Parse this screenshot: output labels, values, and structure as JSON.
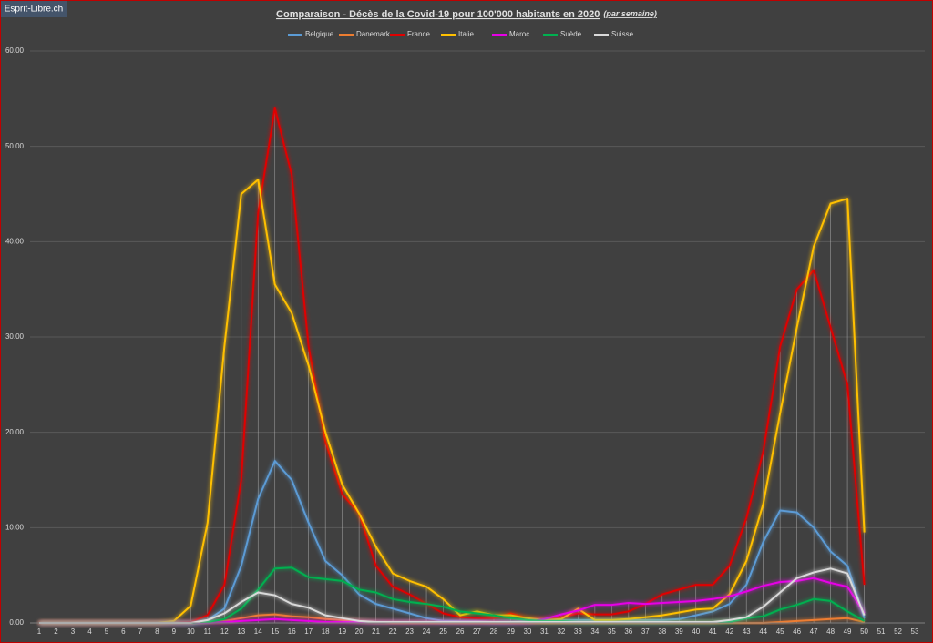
{
  "badge": "Esprit-Libre.ch",
  "chart_data": {
    "type": "line",
    "title": "Comparaison - Décès de la Covid-19 pour 100'000  habitants en 2020",
    "title_note": "(par semaine)",
    "categories": [
      1,
      2,
      3,
      4,
      5,
      6,
      7,
      8,
      9,
      10,
      11,
      12,
      13,
      14,
      15,
      16,
      17,
      18,
      19,
      20,
      21,
      22,
      23,
      24,
      25,
      26,
      27,
      28,
      29,
      30,
      31,
      32,
      33,
      34,
      35,
      36,
      37,
      38,
      39,
      40,
      41,
      42,
      43,
      44,
      45,
      46,
      47,
      48,
      49,
      50,
      51,
      52,
      53
    ],
    "ylim": [
      0,
      60
    ],
    "yticks": [
      {
        "value": 0,
        "label": "0.00"
      },
      {
        "value": 10,
        "label": "10.00"
      },
      {
        "value": 20,
        "label": "20.00"
      },
      {
        "value": 30,
        "label": "30.00"
      },
      {
        "value": 40,
        "label": "40.00"
      },
      {
        "value": 50,
        "label": "50.00"
      },
      {
        "value": 60,
        "label": "60.00"
      }
    ],
    "grid": true,
    "legend": "top",
    "series": [
      {
        "name": "Belgique",
        "color": "#5b9bd5",
        "values": [
          0,
          0,
          0,
          0,
          0,
          0,
          0,
          0,
          0,
          0,
          0.3,
          1.5,
          6,
          13,
          17,
          15,
          10.5,
          6.5,
          5,
          3,
          2,
          1.5,
          1,
          0.5,
          0.2,
          0.2,
          0.2,
          0.1,
          0.1,
          0.2,
          0.3,
          0.3,
          0.3,
          0.3,
          0.3,
          0.3,
          0.3,
          0.3,
          0.4,
          0.8,
          1.2,
          2,
          4,
          8.5,
          11.8,
          11.6,
          10,
          7.5,
          6,
          0.5,
          null,
          null,
          null
        ]
      },
      {
        "name": "Danemark",
        "color": "#ed7d31",
        "values": [
          0,
          0,
          0,
          0,
          0,
          0,
          0,
          0,
          0,
          0,
          0,
          0.2,
          0.5,
          0.8,
          0.9,
          0.7,
          0.6,
          0.4,
          0.3,
          0.2,
          0.1,
          0,
          0,
          0,
          0,
          0,
          0,
          0,
          0,
          0,
          0,
          0,
          0,
          0,
          0,
          0,
          0,
          0,
          0,
          0,
          0,
          0,
          0,
          0,
          0.1,
          0.2,
          0.3,
          0.4,
          0.5,
          0.1,
          null,
          null,
          null
        ]
      },
      {
        "name": "France",
        "color": "#e00000",
        "values": [
          0,
          0,
          0,
          0,
          0,
          0,
          0,
          0,
          0,
          0.1,
          0.8,
          4,
          15,
          43,
          54,
          47,
          29,
          19,
          13.5,
          11.5,
          6,
          3.8,
          3,
          2,
          1,
          0.6,
          0.5,
          0.5,
          1,
          0.5,
          0.4,
          0.6,
          1,
          0.9,
          0.9,
          1.2,
          2,
          3,
          3.5,
          4,
          4,
          6,
          11,
          18,
          29,
          35,
          37,
          31,
          25,
          4,
          null,
          null,
          null
        ]
      },
      {
        "name": "Italie",
        "color": "#ffc000",
        "values": [
          0,
          0,
          0,
          0,
          0,
          0,
          0,
          0,
          0.2,
          1.8,
          10.5,
          29,
          45,
          46.5,
          35.5,
          32.5,
          27,
          20,
          14.5,
          11.5,
          8,
          5.2,
          4.4,
          3.8,
          2.5,
          0.8,
          1.2,
          0.8,
          0.8,
          0.5,
          0.3,
          0.4,
          1.5,
          0.3,
          0.3,
          0.4,
          0.6,
          0.8,
          1.1,
          1.4,
          1.5,
          3,
          6.5,
          12.5,
          22,
          31,
          39.5,
          44,
          44.5,
          9.5,
          null,
          null,
          null
        ]
      },
      {
        "name": "Maroc",
        "color": "#e600e6",
        "values": [
          0,
          0,
          0,
          0,
          0,
          0,
          0,
          0,
          0,
          0,
          0,
          0.1,
          0.2,
          0.3,
          0.4,
          0.3,
          0.2,
          0.1,
          0.1,
          0.1,
          0.1,
          0.1,
          0.1,
          0.1,
          0.1,
          0.1,
          0.1,
          0.1,
          0.1,
          0.1,
          0.4,
          0.9,
          1.3,
          1.9,
          1.9,
          2.1,
          2,
          2.1,
          2.2,
          2.3,
          2.5,
          2.8,
          3.3,
          3.9,
          4.3,
          4.4,
          4.7,
          4.2,
          3.8,
          1,
          null,
          null,
          null
        ]
      },
      {
        "name": "Suède",
        "color": "#00b050",
        "values": [
          0,
          0,
          0,
          0,
          0,
          0,
          0,
          0,
          0,
          0,
          0.1,
          0.4,
          1.5,
          3.5,
          5.7,
          5.8,
          4.8,
          4.6,
          4.4,
          3.5,
          3.2,
          2.5,
          2.2,
          2,
          1.7,
          1.2,
          1,
          0.8,
          0.5,
          0.3,
          0.2,
          0.2,
          0.1,
          0.1,
          0.1,
          0.1,
          0.1,
          0.1,
          0.1,
          0.1,
          0.1,
          0.1,
          0.5,
          0.7,
          1.4,
          1.9,
          2.5,
          2.3,
          1.2,
          0.2,
          null,
          null,
          null
        ]
      },
      {
        "name": "Suisse",
        "color": "#d9d9d9",
        "values": [
          0,
          0,
          0,
          0,
          0,
          0,
          0,
          0,
          0,
          0,
          0.3,
          1,
          2.2,
          3.2,
          2.9,
          2,
          1.6,
          0.8,
          0.5,
          0.2,
          0.1,
          0.1,
          0.1,
          0.1,
          0.1,
          0.1,
          0.1,
          0.1,
          0.1,
          0.1,
          0.1,
          0.1,
          0.1,
          0.1,
          0.1,
          0.1,
          0.1,
          0.1,
          0.1,
          0.1,
          0.1,
          0.3,
          0.6,
          1.7,
          3.2,
          4.7,
          5.3,
          5.7,
          5.2,
          0.8,
          null,
          null,
          null
        ]
      }
    ]
  }
}
